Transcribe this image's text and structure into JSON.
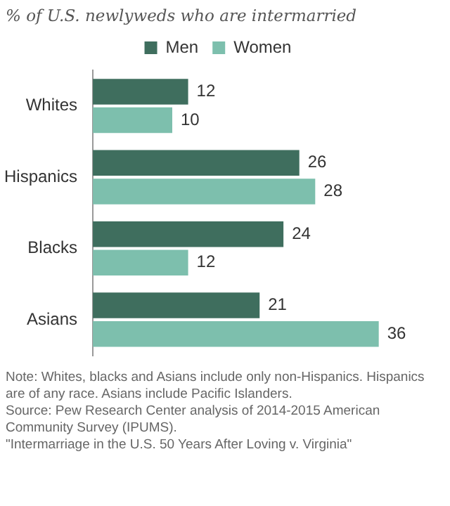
{
  "chart_data": {
    "type": "bar",
    "orientation": "horizontal",
    "title": "% of U.S. newlyweds who are intermarried",
    "categories": [
      "Whites",
      "Hispanics",
      "Blacks",
      "Asians"
    ],
    "series": [
      {
        "name": "Men",
        "color": "#3f6e5e",
        "values": [
          12,
          26,
          24,
          21
        ]
      },
      {
        "name": "Women",
        "color": "#7dbfad",
        "values": [
          10,
          28,
          12,
          36
        ]
      }
    ],
    "data_labels": true,
    "legend": "top",
    "annotations": [
      "Note: Whites, blacks and Asians include only non-Hispanics. Hispanics are of any race. Asians include Pacific Islanders.",
      "Source: Pew Research Center analysis of 2014-2015 American Community Survey (IPUMS).",
      "\"Intermarriage in the U.S. 50 Years After Loving v. Virginia\""
    ]
  }
}
